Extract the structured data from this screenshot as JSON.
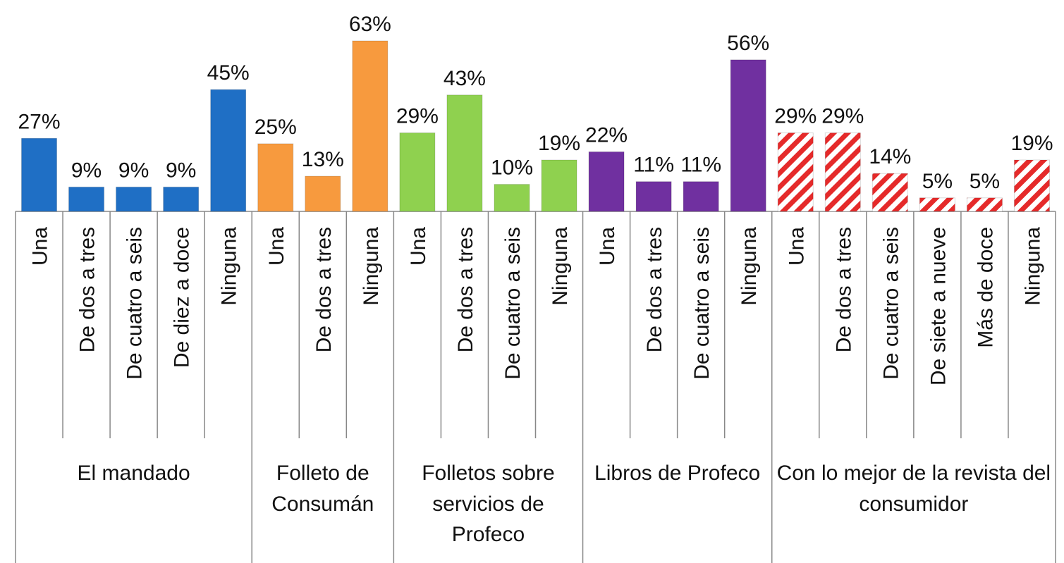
{
  "chart_data": {
    "type": "bar",
    "groups": [
      {
        "name": "El mandado",
        "color": "#1f6fc5",
        "categories": [
          "Una",
          "De dos a tres",
          "De cuatro a seis",
          "De diez a doce",
          "Ninguna"
        ],
        "values": [
          27,
          9,
          9,
          9,
          45
        ],
        "value_labels": [
          "27%",
          "9%",
          "9%",
          "9%",
          "45%"
        ]
      },
      {
        "name": "Folleto de Consumán",
        "color": "#f79a3e",
        "categories": [
          "Una",
          "De dos a tres",
          "Ninguna"
        ],
        "values": [
          25,
          13,
          63
        ],
        "value_labels": [
          "25%",
          "13%",
          "63%"
        ]
      },
      {
        "name": "Folletos sobre servicios de Profeco",
        "color": "#8fd14f",
        "categories": [
          "Una",
          "De dos a tres",
          "De cuatro a seis",
          "Ninguna"
        ],
        "values": [
          29,
          43,
          10,
          19
        ],
        "value_labels": [
          "29%",
          "43%",
          "10%",
          "19%"
        ]
      },
      {
        "name": "Libros de Profeco",
        "color": "#7030a0",
        "categories": [
          "Una",
          "De dos a tres",
          "De cuatro a seis",
          "Ninguna"
        ],
        "values": [
          22,
          11,
          11,
          56
        ],
        "value_labels": [
          "22%",
          "11%",
          "11%",
          "56%"
        ]
      },
      {
        "name": "Con lo mejor de la revista del consumidor",
        "color": "#e52a2a",
        "pattern": "hatch",
        "categories": [
          "Una",
          "De dos a tres",
          "De cuatro a seis",
          "De siete a nueve",
          "Más de doce",
          "Ninguna"
        ],
        "values": [
          29,
          29,
          14,
          5,
          5,
          19
        ],
        "value_labels": [
          "29%",
          "29%",
          "14%",
          "5%",
          "5%",
          "19%"
        ]
      }
    ],
    "ylim": [
      0,
      63
    ]
  }
}
